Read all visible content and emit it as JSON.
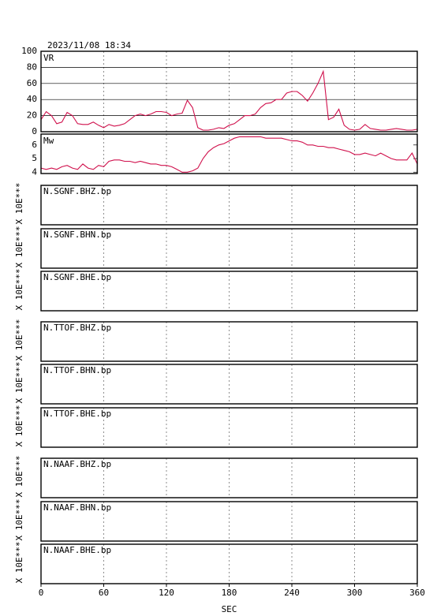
{
  "chart_data": [
    {
      "type": "line",
      "title": "2023/11/08 18:34",
      "ylim": [
        0,
        100
      ],
      "yticks": [
        0,
        20,
        40,
        60,
        80,
        100
      ],
      "grid": true,
      "x": [
        0,
        5,
        10,
        15,
        20,
        25,
        30,
        35,
        40,
        45,
        50,
        55,
        60,
        65,
        70,
        75,
        80,
        85,
        90,
        95,
        100,
        105,
        110,
        115,
        120,
        125,
        130,
        135,
        140,
        145,
        150,
        155,
        160,
        165,
        170,
        175,
        180,
        185,
        190,
        195,
        200,
        205,
        210,
        215,
        220,
        225,
        230,
        235,
        240,
        245,
        250,
        255,
        260,
        265,
        270,
        275,
        280,
        285,
        290,
        295,
        300,
        305,
        310,
        315,
        320,
        325,
        330,
        335,
        340,
        345,
        350,
        355,
        360
      ],
      "series": [
        {
          "name": "VR",
          "color": "#d0104c",
          "values": [
            15,
            25,
            20,
            10,
            12,
            24,
            20,
            10,
            9,
            9,
            12,
            8,
            5,
            9,
            7,
            8,
            10,
            15,
            20,
            22,
            20,
            22,
            25,
            25,
            24,
            20,
            22,
            23,
            39,
            30,
            5,
            2,
            2,
            3,
            5,
            4,
            8,
            10,
            15,
            20,
            20,
            22,
            30,
            35,
            36,
            40,
            40,
            48,
            50,
            50,
            45,
            38,
            48,
            60,
            75,
            15,
            18,
            28,
            8,
            3,
            2,
            3,
            9,
            4,
            3,
            2,
            2,
            3,
            4,
            3,
            2,
            2,
            3
          ]
        }
      ]
    },
    {
      "type": "line",
      "ylim": [
        3.9,
        6.8
      ],
      "yticks": [
        4,
        5,
        6
      ],
      "grid": false,
      "x": [
        0,
        5,
        10,
        15,
        20,
        25,
        30,
        35,
        40,
        45,
        50,
        55,
        60,
        65,
        70,
        75,
        80,
        85,
        90,
        95,
        100,
        105,
        110,
        115,
        120,
        125,
        130,
        135,
        140,
        145,
        150,
        155,
        160,
        165,
        170,
        175,
        180,
        185,
        190,
        195,
        200,
        205,
        210,
        215,
        220,
        225,
        230,
        235,
        240,
        245,
        250,
        255,
        260,
        265,
        270,
        275,
        280,
        285,
        290,
        295,
        300,
        305,
        310,
        315,
        320,
        325,
        330,
        335,
        340,
        345,
        350,
        355,
        360
      ],
      "series": [
        {
          "name": "Mw",
          "color": "#d0104c",
          "values": [
            4.3,
            4.2,
            4.3,
            4.2,
            4.4,
            4.5,
            4.3,
            4.2,
            4.6,
            4.3,
            4.2,
            4.5,
            4.4,
            4.8,
            4.9,
            4.9,
            4.8,
            4.8,
            4.7,
            4.8,
            4.7,
            4.6,
            4.6,
            4.5,
            4.5,
            4.4,
            4.2,
            4.0,
            4.0,
            4.1,
            4.3,
            5.0,
            5.5,
            5.8,
            6.0,
            6.1,
            6.3,
            6.5,
            6.6,
            6.6,
            6.6,
            6.6,
            6.6,
            6.5,
            6.5,
            6.5,
            6.5,
            6.4,
            6.3,
            6.3,
            6.2,
            6.0,
            6.0,
            5.9,
            5.9,
            5.8,
            5.8,
            5.7,
            5.6,
            5.5,
            5.3,
            5.3,
            5.4,
            5.3,
            5.2,
            5.4,
            5.2,
            5.0,
            4.9,
            4.9,
            4.9,
            5.4,
            4.6
          ]
        }
      ]
    },
    {
      "type": "empty",
      "title": "N.SGNF.BHZ.bp",
      "ylabel": "X 10E***"
    },
    {
      "type": "empty",
      "title": "N.SGNF.BHN.bp",
      "ylabel": "X 10E***"
    },
    {
      "type": "empty",
      "title": "N.SGNF.BHE.bp",
      "ylabel": "X 10E***"
    },
    {
      "type": "empty",
      "title": "N.TTOF.BHZ.bp",
      "ylabel": "X 10E***"
    },
    {
      "type": "empty",
      "title": "N.TTOF.BHN.bp",
      "ylabel": "X 10E***"
    },
    {
      "type": "empty",
      "title": "N.TTOF.BHE.bp",
      "ylabel": "X 10E***"
    },
    {
      "type": "empty",
      "title": "N.NAAF.BHZ.bp",
      "ylabel": "X 10E***"
    },
    {
      "type": "empty",
      "title": "N.NAAF.BHN.bp",
      "ylabel": "X 10E***"
    },
    {
      "type": "empty",
      "title": "N.NAAF.BHE.bp",
      "ylabel": "X 10E***",
      "xlabel": "SEC",
      "xlim": [
        0,
        360
      ],
      "xticks": [
        0,
        60,
        120,
        180,
        240,
        300,
        360
      ]
    }
  ]
}
